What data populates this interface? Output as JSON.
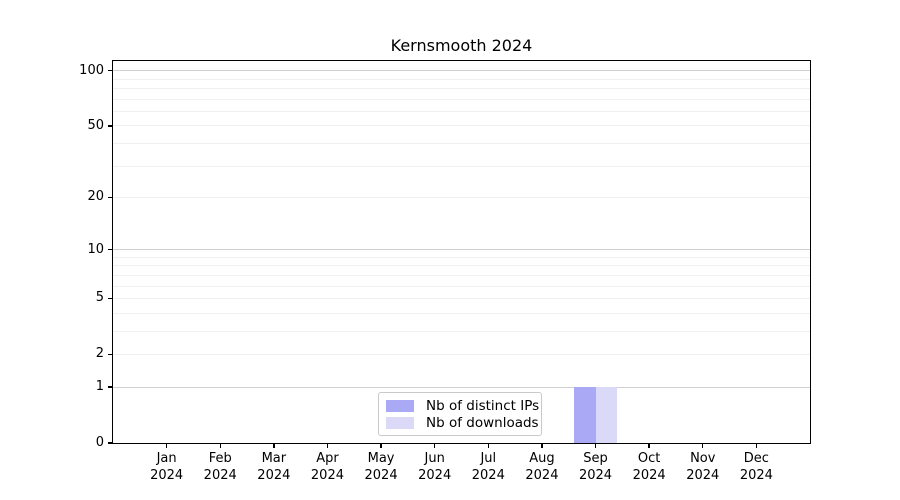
{
  "chart_data": {
    "type": "bar",
    "title": "Kernsmooth 2024",
    "x_tick_labels": [
      [
        "Jan",
        "2024"
      ],
      [
        "Feb",
        "2024"
      ],
      [
        "Mar",
        "2024"
      ],
      [
        "Apr",
        "2024"
      ],
      [
        "May",
        "2024"
      ],
      [
        "Jun",
        "2024"
      ],
      [
        "Jul",
        "2024"
      ],
      [
        "Aug",
        "2024"
      ],
      [
        "Sep",
        "2024"
      ],
      [
        "Oct",
        "2024"
      ],
      [
        "Nov",
        "2024"
      ],
      [
        "Dec",
        "2024"
      ]
    ],
    "series": [
      {
        "name": "Nb of distinct IPs",
        "color": "#a9a9f6",
        "values": [
          0,
          0,
          0,
          0,
          0,
          0,
          0,
          0,
          1,
          0,
          0,
          0
        ]
      },
      {
        "name": "Nb of downloads",
        "color": "#dadaf8",
        "values": [
          0,
          0,
          0,
          0,
          0,
          0,
          0,
          0,
          1,
          0,
          0,
          0
        ]
      }
    ],
    "y_scale": "log1p",
    "y_tick_values": [
      0,
      1,
      2,
      5,
      10,
      20,
      50,
      100
    ],
    "y_major_gridlines": [
      1,
      10,
      100
    ],
    "y_minor_gridlines": [
      2,
      3,
      4,
      5,
      6,
      7,
      8,
      9,
      20,
      30,
      40,
      50,
      60,
      70,
      80,
      90
    ],
    "ylim": [
      0,
      113
    ],
    "grid": true,
    "legend_position": "lower center",
    "colors": {
      "axis": "#000000",
      "major_grid": "#d0d0d0",
      "minor_grid": "#f0f0f0",
      "background": "#ffffff"
    }
  }
}
